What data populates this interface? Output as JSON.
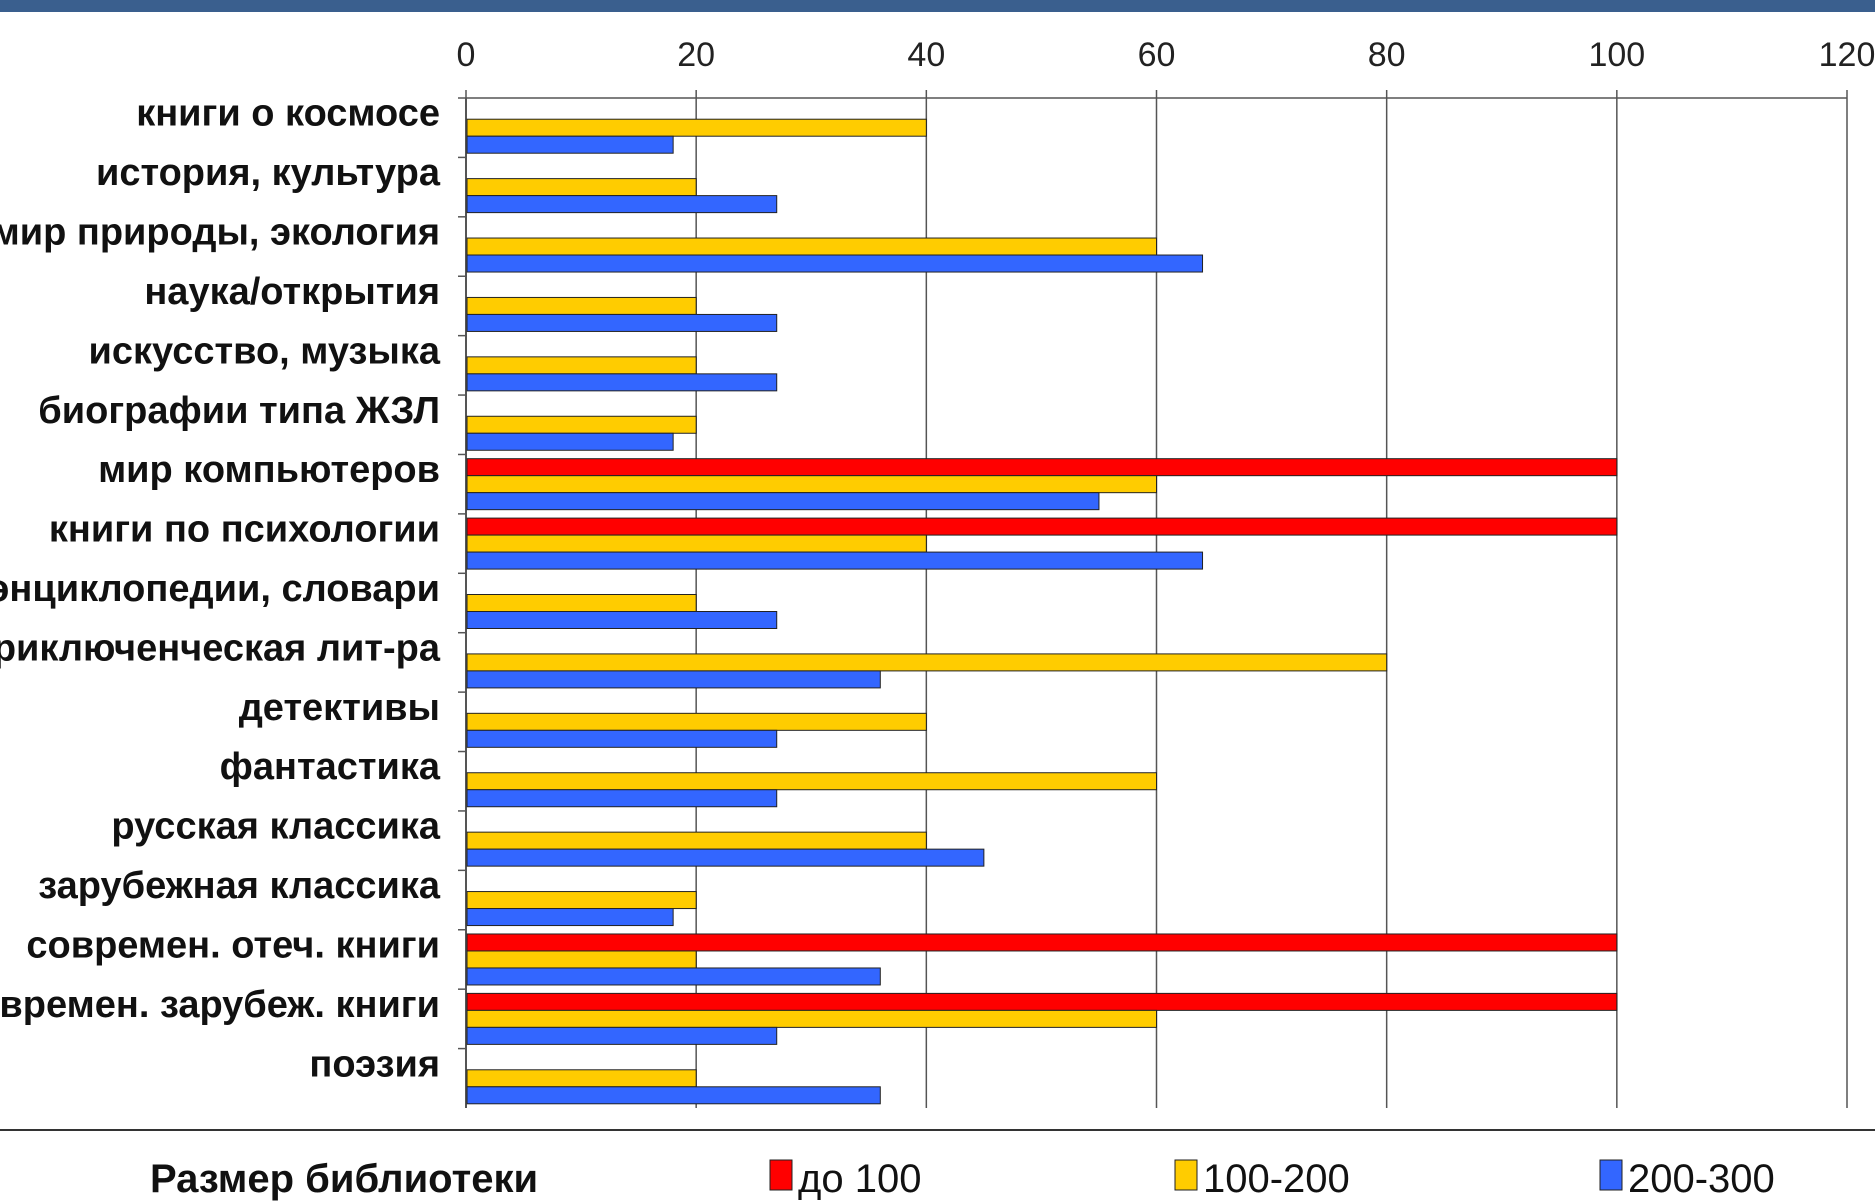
{
  "colors": {
    "top_band": "#3a5f8e",
    "bar_series_1": "#ff0000",
    "bar_series_2": "#ffcc00",
    "bar_series_3": "#3366ff",
    "grid": "#555555"
  },
  "chart_data": {
    "type": "bar",
    "orientation": "horizontal",
    "title": "",
    "xlabel": "",
    "ylabel": "",
    "xlim": [
      0,
      120
    ],
    "x_ticks": [
      "0",
      "20",
      "40",
      "60",
      "80",
      "100",
      "120"
    ],
    "grid": true,
    "legend_position": "bottom",
    "legend_title": "Размер библиотеки",
    "categories": [
      "книги о космосе",
      "история, культура",
      "мир природы, экология",
      "наука/открытия",
      "искусство, музыка",
      "биографии типа ЖЗЛ",
      "мир компьютеров",
      "книги по психологии",
      "энциклопедии, словари",
      "приключенческая лит-ра",
      "детективы",
      "фантастика",
      "русская классика",
      "зарубежная классика",
      "современ. отеч. книги",
      "современ. зарубеж. книги",
      "поэзия"
    ],
    "series": [
      {
        "name": "до 100",
        "values": [
          0,
          0,
          0,
          0,
          0,
          0,
          100,
          100,
          0,
          0,
          0,
          0,
          0,
          0,
          100,
          100,
          0
        ]
      },
      {
        "name": "100-200",
        "values": [
          40,
          20,
          60,
          20,
          20,
          20,
          60,
          40,
          20,
          80,
          40,
          60,
          40,
          20,
          20,
          60,
          20
        ]
      },
      {
        "name": "200-300",
        "values": [
          18,
          27,
          64,
          27,
          27,
          18,
          55,
          64,
          27,
          36,
          27,
          27,
          45,
          18,
          36,
          27,
          36
        ]
      }
    ]
  }
}
